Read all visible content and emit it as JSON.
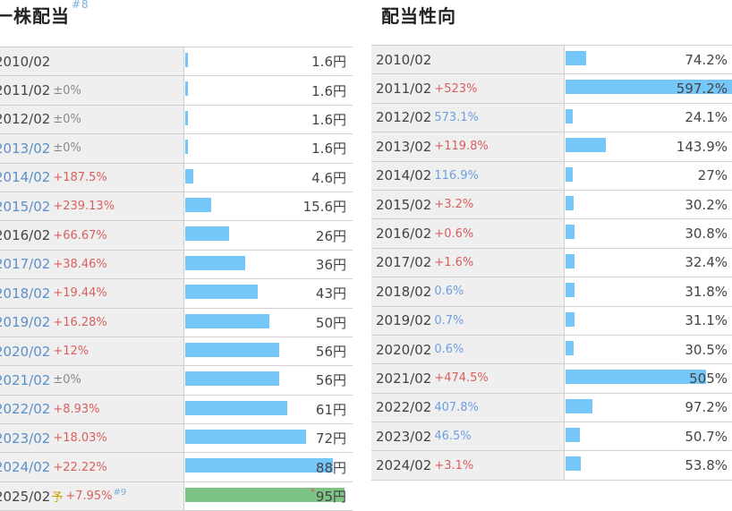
{
  "left": {
    "title": "一株配当",
    "title_note": "#8",
    "rows": [
      {
        "year": "2010/02",
        "year_blue": false,
        "change": "",
        "change_color": "gray",
        "value": "1.6円",
        "amount": 1.6
      },
      {
        "year": "2011/02",
        "year_blue": false,
        "change": "±0%",
        "change_color": "gray",
        "value": "1.6円",
        "amount": 1.6
      },
      {
        "year": "2012/02",
        "year_blue": false,
        "change": "±0%",
        "change_color": "gray",
        "value": "1.6円",
        "amount": 1.6
      },
      {
        "year": "2013/02",
        "year_blue": true,
        "change": "±0%",
        "change_color": "gray",
        "value": "1.6円",
        "amount": 1.6
      },
      {
        "year": "2014/02",
        "year_blue": true,
        "change": "+187.5%",
        "change_color": "red",
        "value": "4.6円",
        "amount": 4.6
      },
      {
        "year": "2015/02",
        "year_blue": true,
        "change": "+239.13%",
        "change_color": "red",
        "value": "15.6円",
        "amount": 15.6
      },
      {
        "year": "2016/02",
        "year_blue": false,
        "change": "+66.67%",
        "change_color": "red",
        "value": "26円",
        "amount": 26
      },
      {
        "year": "2017/02",
        "year_blue": true,
        "change": "+38.46%",
        "change_color": "red",
        "value": "36円",
        "amount": 36
      },
      {
        "year": "2018/02",
        "year_blue": true,
        "change": "+19.44%",
        "change_color": "red",
        "value": "43円",
        "amount": 43
      },
      {
        "year": "2019/02",
        "year_blue": true,
        "change": "+16.28%",
        "change_color": "red",
        "value": "50円",
        "amount": 50
      },
      {
        "year": "2020/02",
        "year_blue": true,
        "change": "+12%",
        "change_color": "red",
        "value": "56円",
        "amount": 56
      },
      {
        "year": "2021/02",
        "year_blue": true,
        "change": "±0%",
        "change_color": "gray",
        "value": "56円",
        "amount": 56
      },
      {
        "year": "2022/02",
        "year_blue": true,
        "change": "+8.93%",
        "change_color": "red",
        "value": "61円",
        "amount": 61
      },
      {
        "year": "2023/02",
        "year_blue": true,
        "change": "+18.03%",
        "change_color": "red",
        "value": "72円",
        "amount": 72
      },
      {
        "year": "2024/02",
        "year_blue": true,
        "change": "+22.22%",
        "change_color": "red",
        "value": "88円",
        "amount": 88
      },
      {
        "year": "2025/02",
        "year_blue": false,
        "forecast": "予",
        "change": "+7.95%",
        "change_color": "red",
        "note": "#9",
        "value": "95円",
        "amount": 95,
        "value_mark": "*",
        "bar_color": "green"
      }
    ]
  },
  "right": {
    "title": "配当性向",
    "rows": [
      {
        "year": "2010/02",
        "change": "",
        "change_color": "gray",
        "value": "74.2%",
        "amount": 74.2
      },
      {
        "year": "2011/02",
        "change": "+523%",
        "change_color": "red",
        "value": "597.2%",
        "amount": 597.2
      },
      {
        "year": "2012/02",
        "change": "573.1%",
        "change_color": "blue",
        "value": "24.1%",
        "amount": 24.1
      },
      {
        "year": "2013/02",
        "change": "+119.8%",
        "change_color": "red",
        "value": "143.9%",
        "amount": 143.9
      },
      {
        "year": "2014/02",
        "change": "116.9%",
        "change_color": "blue",
        "value": "27%",
        "amount": 27
      },
      {
        "year": "2015/02",
        "change": "+3.2%",
        "change_color": "red",
        "value": "30.2%",
        "amount": 30.2
      },
      {
        "year": "2016/02",
        "change": "+0.6%",
        "change_color": "red",
        "value": "30.8%",
        "amount": 30.8
      },
      {
        "year": "2017/02",
        "change": "+1.6%",
        "change_color": "red",
        "value": "32.4%",
        "amount": 32.4
      },
      {
        "year": "2018/02",
        "change": "0.6%",
        "change_color": "blue",
        "value": "31.8%",
        "amount": 31.8
      },
      {
        "year": "2019/02",
        "change": "0.7%",
        "change_color": "blue",
        "value": "31.1%",
        "amount": 31.1
      },
      {
        "year": "2020/02",
        "change": "0.6%",
        "change_color": "blue",
        "value": "30.5%",
        "amount": 30.5
      },
      {
        "year": "2021/02",
        "change": "+474.5%",
        "change_color": "red",
        "value": "505%",
        "amount": 505
      },
      {
        "year": "2022/02",
        "change": "407.8%",
        "change_color": "blue",
        "value": "97.2%",
        "amount": 97.2
      },
      {
        "year": "2023/02",
        "change": "46.5%",
        "change_color": "blue",
        "value": "50.7%",
        "amount": 50.7
      },
      {
        "year": "2024/02",
        "change": "+3.1%",
        "change_color": "red",
        "value": "53.8%",
        "amount": 53.8
      }
    ]
  }
}
